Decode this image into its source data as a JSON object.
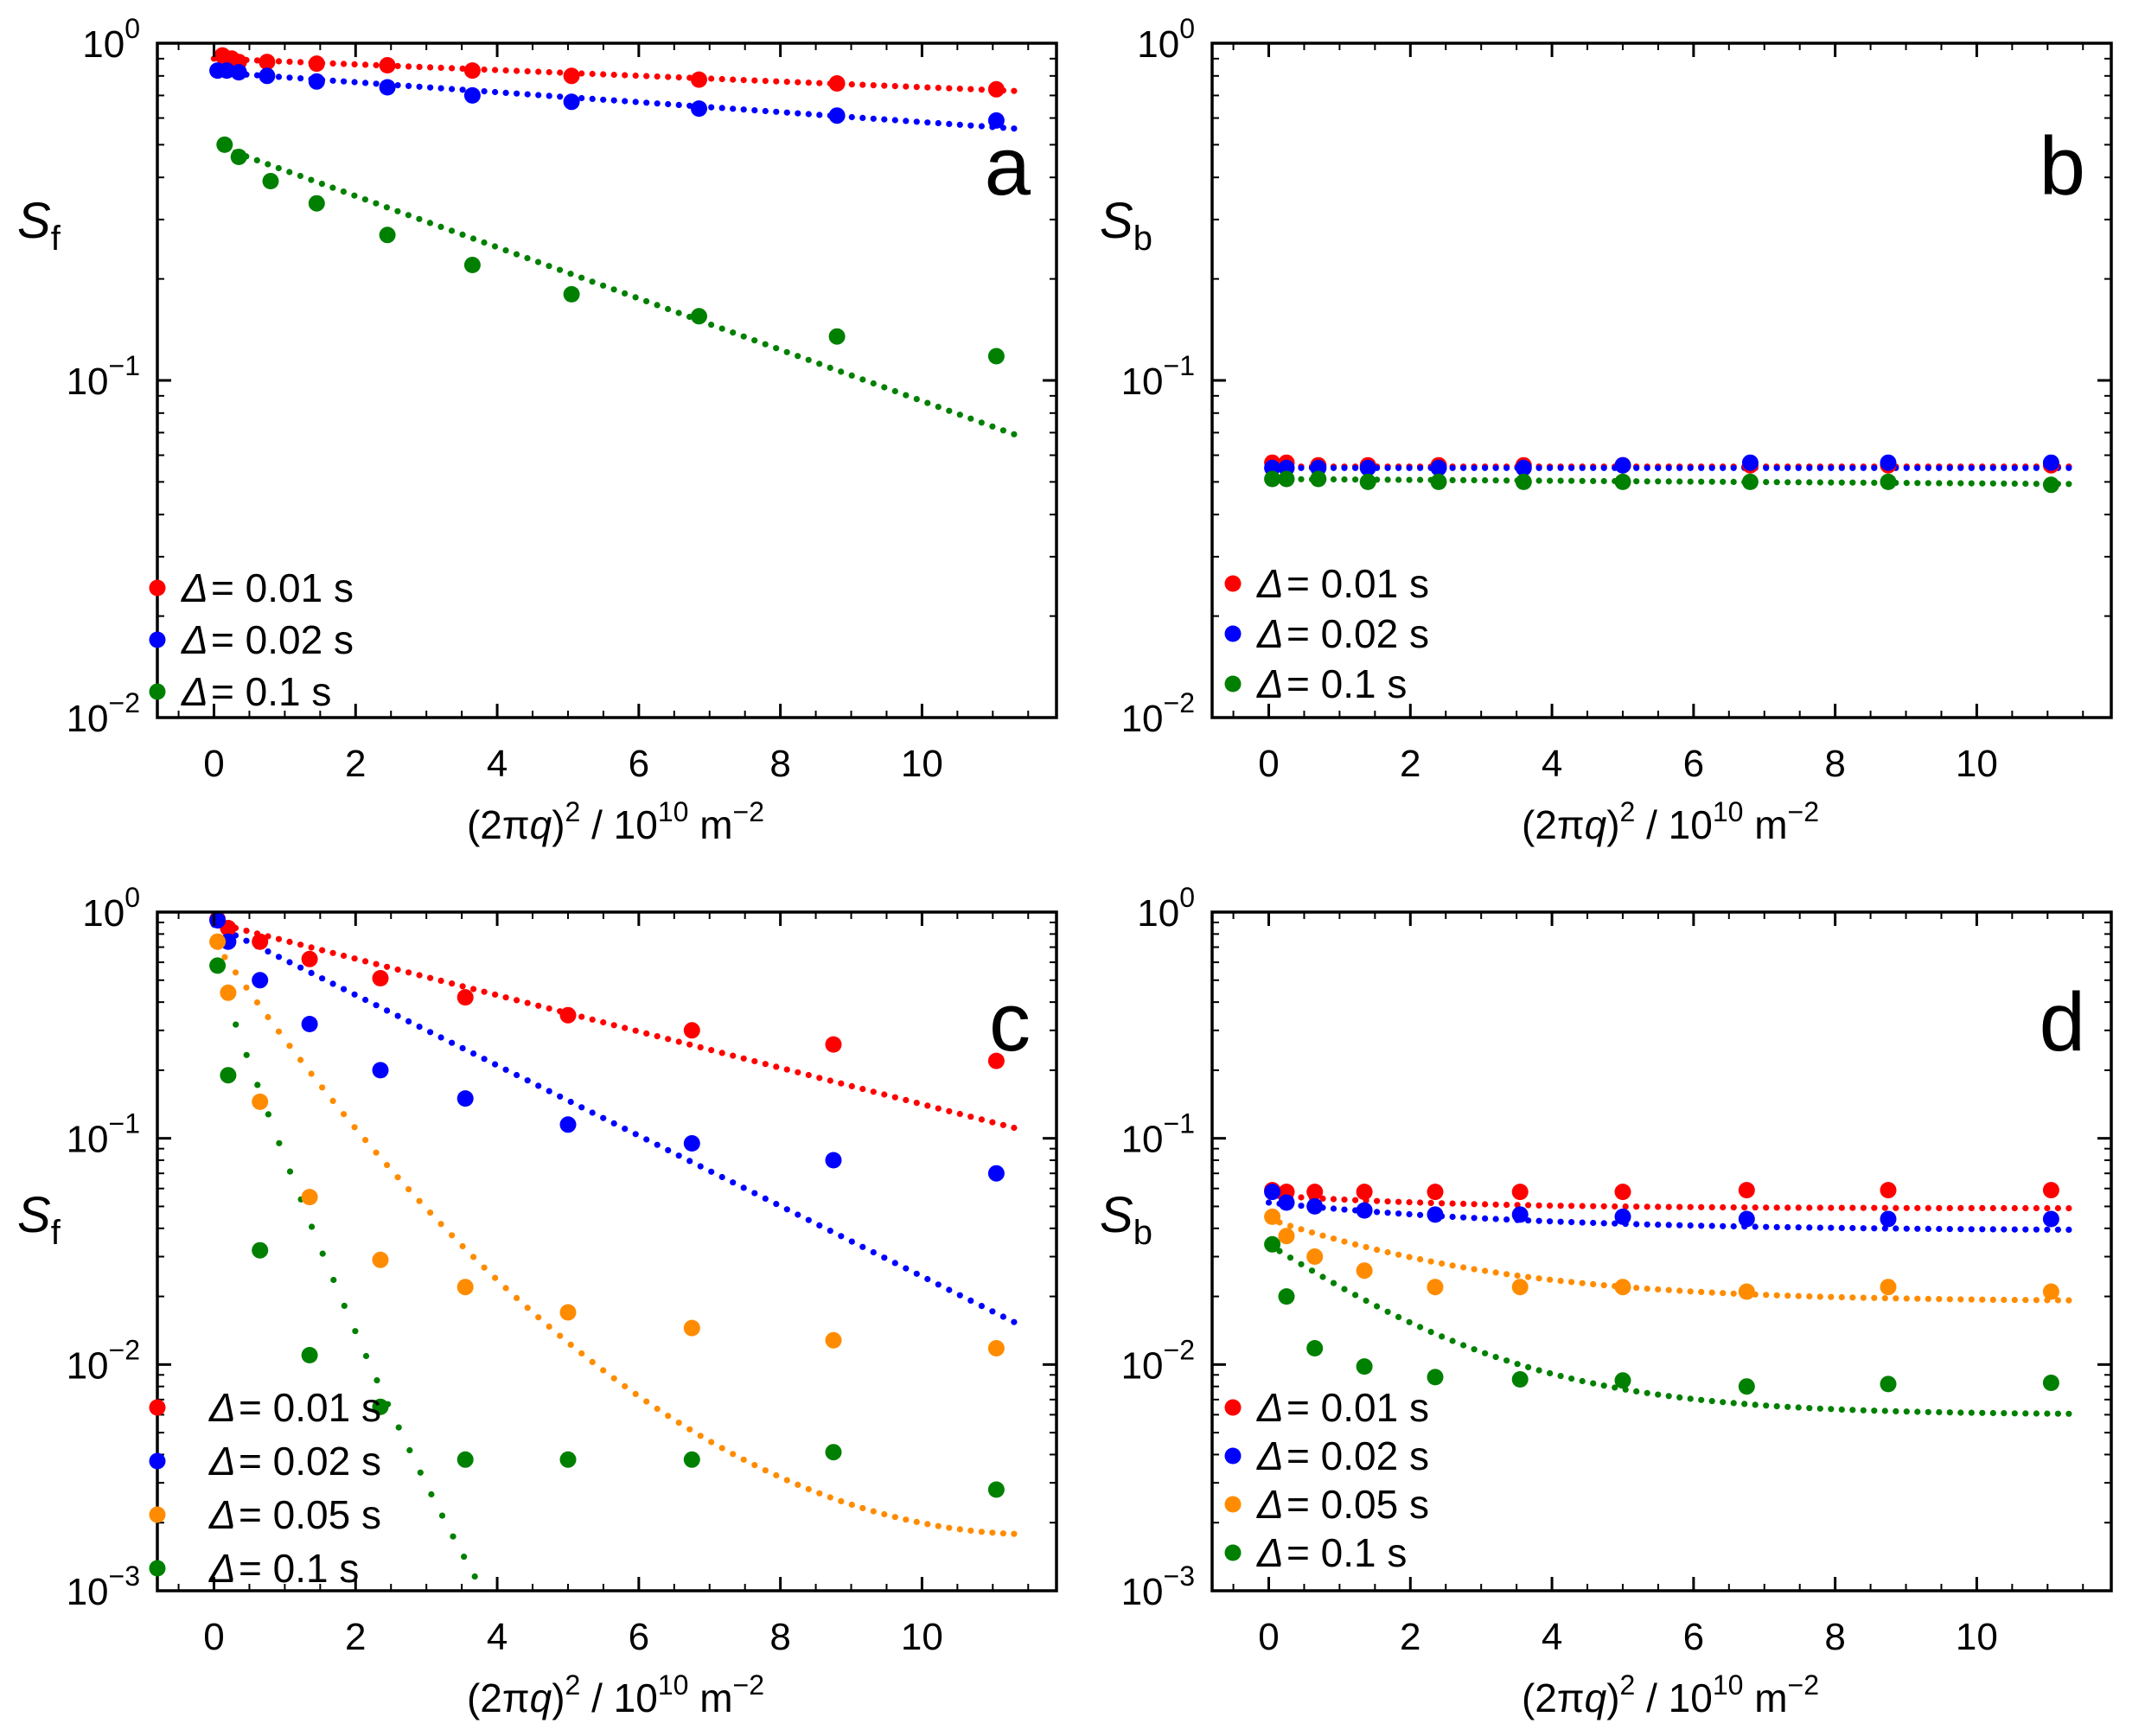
{
  "chart_data": [
    {
      "panel": "a",
      "type": "scatter",
      "panel_label": "a",
      "ylabel_main": "S",
      "ylabel_sub": "f",
      "xlabel_pre": "(2π",
      "xlabel_var": "q",
      "xlabel_close": ")",
      "xlabel_sup": "2",
      "xlabel_mid": " / 10",
      "xlabel_sup2": "10",
      "xlabel_unit": " m",
      "xlabel_sup3": "−2",
      "xlim": [
        -0.8,
        11.9
      ],
      "ylim": [
        0.01,
        1
      ],
      "yscale": "log",
      "xticks": [
        0,
        2,
        4,
        6,
        8,
        10
      ],
      "yticks": [
        {
          "value": 1,
          "base": "10",
          "exp": "0"
        },
        {
          "value": 0.1,
          "base": "10",
          "exp": "−1"
        },
        {
          "value": 0.01,
          "base": "10",
          "exp": "−2"
        }
      ],
      "legend": [
        {
          "sym": "Δ",
          "text": "= 0.01 s",
          "color": "#ff0000"
        },
        {
          "sym": "Δ",
          "text": "= 0.02 s",
          "color": "#0000ff"
        },
        {
          "sym": "Δ",
          "text": "= 0.1 s",
          "color": "#008000"
        }
      ],
      "series": [
        {
          "name": "Δ = 0.01 s",
          "color": "#ff0000",
          "x": [
            0.12,
            0.25,
            0.35,
            0.75,
            1.45,
            2.45,
            3.65,
            5.05,
            6.85,
            8.8,
            11.05
          ],
          "y": [
            0.92,
            0.9,
            0.88,
            0.88,
            0.87,
            0.86,
            0.83,
            0.8,
            0.78,
            0.76,
            0.73
          ],
          "fit": {
            "kind": "exp",
            "x0": 0,
            "x1": 11.3,
            "a": 0.9,
            "k": 0.0195
          }
        },
        {
          "name": "Δ = 0.02 s",
          "color": "#0000ff",
          "x": [
            0.05,
            0.18,
            0.35,
            0.75,
            1.45,
            2.45,
            3.65,
            5.05,
            6.85,
            8.8,
            11.05
          ],
          "y": [
            0.83,
            0.83,
            0.82,
            0.8,
            0.77,
            0.74,
            0.7,
            0.67,
            0.64,
            0.61,
            0.59
          ],
          "fit": {
            "kind": "exp",
            "x0": 0,
            "x1": 11.3,
            "a": 0.82,
            "k": 0.034
          }
        },
        {
          "name": "Δ = 0.1 s",
          "color": "#008000",
          "x": [
            0.15,
            0.35,
            0.8,
            1.45,
            2.45,
            3.65,
            5.05,
            6.85,
            8.8,
            11.05
          ],
          "y": [
            0.5,
            0.46,
            0.39,
            0.335,
            0.27,
            0.22,
            0.18,
            0.155,
            0.135,
            0.118
          ],
          "fit": {
            "kind": "exp",
            "x0": 0.15,
            "x1": 11.3,
            "a": 0.5,
            "k": 0.175
          }
        }
      ]
    },
    {
      "panel": "b",
      "type": "scatter",
      "panel_label": "b",
      "ylabel_main": "S",
      "ylabel_sub": "b",
      "xlabel_pre": "(2π",
      "xlabel_var": "q",
      "xlabel_close": ")",
      "xlabel_sup": "2",
      "xlabel_mid": " / 10",
      "xlabel_sup2": "10",
      "xlabel_unit": " m",
      "xlabel_sup3": "−2",
      "xlim": [
        -0.8,
        11.9
      ],
      "ylim": [
        0.01,
        1
      ],
      "yscale": "log",
      "xticks": [
        0,
        2,
        4,
        6,
        8,
        10
      ],
      "yticks": [
        {
          "value": 1,
          "base": "10",
          "exp": "0"
        },
        {
          "value": 0.1,
          "base": "10",
          "exp": "−1"
        },
        {
          "value": 0.01,
          "base": "10",
          "exp": "−2"
        }
      ],
      "legend": [
        {
          "sym": "Δ",
          "text": "= 0.01 s",
          "color": "#ff0000"
        },
        {
          "sym": "Δ",
          "text": "= 0.02 s",
          "color": "#0000ff"
        },
        {
          "sym": "Δ",
          "text": "= 0.1 s",
          "color": "#008000"
        }
      ],
      "series": [
        {
          "name": "Δ = 0.01 s",
          "color": "#ff0000",
          "x": [
            0.05,
            0.25,
            0.7,
            1.4,
            2.4,
            3.6,
            5.0,
            6.8,
            8.75,
            11.05
          ],
          "y": [
            0.057,
            0.057,
            0.056,
            0.056,
            0.056,
            0.056,
            0.056,
            0.056,
            0.056,
            0.056
          ],
          "fit": {
            "kind": "exp",
            "x0": 0,
            "x1": 11.3,
            "a": 0.0555,
            "k": 0.0
          }
        },
        {
          "name": "Δ = 0.02 s",
          "color": "#0000ff",
          "x": [
            0.05,
            0.25,
            0.7,
            1.4,
            2.4,
            3.6,
            5.0,
            6.8,
            8.75,
            11.05
          ],
          "y": [
            0.055,
            0.055,
            0.055,
            0.055,
            0.055,
            0.055,
            0.056,
            0.057,
            0.057,
            0.057
          ],
          "fit": {
            "kind": "exp",
            "x0": 0,
            "x1": 11.3,
            "a": 0.055,
            "k": 0.0
          }
        },
        {
          "name": "Δ = 0.1 s",
          "color": "#008000",
          "x": [
            0.05,
            0.25,
            0.7,
            1.4,
            2.4,
            3.6,
            5.0,
            6.8,
            8.75,
            11.05
          ],
          "y": [
            0.051,
            0.051,
            0.051,
            0.05,
            0.05,
            0.05,
            0.05,
            0.05,
            0.05,
            0.049
          ],
          "fit": {
            "kind": "exp",
            "x0": 0,
            "x1": 11.3,
            "a": 0.051,
            "k": 0.003
          }
        }
      ]
    },
    {
      "panel": "c",
      "type": "scatter",
      "panel_label": "c",
      "ylabel_main": "S",
      "ylabel_sub": "f",
      "xlabel_pre": "(2π",
      "xlabel_var": "q",
      "xlabel_close": ")",
      "xlabel_sup": "2",
      "xlabel_mid": " / 10",
      "xlabel_sup2": "10",
      "xlabel_unit": " m",
      "xlabel_sup3": "−2",
      "xlim": [
        -0.8,
        11.9
      ],
      "ylim": [
        0.001,
        1
      ],
      "yscale": "log",
      "xticks": [
        0,
        2,
        4,
        6,
        8,
        10
      ],
      "yticks": [
        {
          "value": 1,
          "base": "10",
          "exp": "0"
        },
        {
          "value": 0.1,
          "base": "10",
          "exp": "−1"
        },
        {
          "value": 0.01,
          "base": "10",
          "exp": "−2"
        },
        {
          "value": 0.001,
          "base": "10",
          "exp": "−3"
        }
      ],
      "legend": [
        {
          "sym": "Δ",
          "text": "= 0.01 s",
          "color": "#ff0000"
        },
        {
          "sym": "Δ",
          "text": "= 0.02 s",
          "color": "#0000ff"
        },
        {
          "sym": "Δ",
          "text": "= 0.05 s",
          "color": "#ff8c00"
        },
        {
          "sym": "Δ",
          "text": "= 0.1 s",
          "color": "#008000"
        }
      ],
      "series": [
        {
          "name": "Δ = 0.01 s",
          "color": "#ff0000",
          "x": [
            0.05,
            0.2,
            0.65,
            1.35,
            2.35,
            3.55,
            5.0,
            6.75,
            8.75,
            11.05
          ],
          "y": [
            0.93,
            0.85,
            0.74,
            0.62,
            0.51,
            0.42,
            0.35,
            0.3,
            0.26,
            0.22
          ],
          "fit": {
            "kind": "exp",
            "x0": 0,
            "x1": 11.3,
            "a": 0.9,
            "k": 0.185
          }
        },
        {
          "name": "Δ = 0.02 s",
          "color": "#0000ff",
          "x": [
            0.05,
            0.2,
            0.65,
            1.35,
            2.35,
            3.55,
            5.0,
            6.75,
            8.75,
            11.05
          ],
          "y": [
            0.92,
            0.74,
            0.5,
            0.32,
            0.2,
            0.15,
            0.115,
            0.095,
            0.08,
            0.07
          ],
          "fit": {
            "kind": "exp",
            "x0": 0,
            "x1": 11.3,
            "a": 0.88,
            "k": 0.358
          }
        },
        {
          "name": "Δ = 0.05 s",
          "color": "#ff8c00",
          "x": [
            0.05,
            0.2,
            0.65,
            1.35,
            2.35,
            3.55,
            5.0,
            6.75,
            8.75,
            11.05
          ],
          "y": [
            0.74,
            0.44,
            0.145,
            0.055,
            0.029,
            0.022,
            0.017,
            0.0145,
            0.0128,
            0.0118
          ],
          "fit": {
            "kind": "gauss",
            "x0": 0,
            "x1": 11.3,
            "a": 0.74,
            "k": 1.04,
            "x_peak": 11.6
          }
        },
        {
          "name": "Δ = 0.1 s",
          "color": "#008000",
          "x": [
            0.05,
            0.2,
            0.65,
            1.35,
            2.35,
            3.55,
            5.0,
            6.75,
            8.75,
            11.05
          ],
          "y": [
            0.58,
            0.19,
            0.032,
            0.011,
            0.0065,
            0.0038,
            0.0038,
            0.0038,
            0.0041,
            0.0028
          ],
          "fit": {
            "kind": "gauss",
            "x0": 0,
            "x1": 6.6,
            "a": 0.6,
            "k": 2.1,
            "x_peak": 9.6
          }
        }
      ]
    },
    {
      "panel": "d",
      "type": "scatter",
      "panel_label": "d",
      "ylabel_main": "S",
      "ylabel_sub": "b",
      "xlabel_pre": "(2π",
      "xlabel_var": "q",
      "xlabel_close": ")",
      "xlabel_sup": "2",
      "xlabel_mid": " / 10",
      "xlabel_sup2": "10",
      "xlabel_unit": " m",
      "xlabel_sup3": "−2",
      "xlim": [
        -0.8,
        11.9
      ],
      "ylim": [
        0.001,
        1
      ],
      "yscale": "log",
      "xticks": [
        0,
        2,
        4,
        6,
        8,
        10
      ],
      "yticks": [
        {
          "value": 1,
          "base": "10",
          "exp": "0"
        },
        {
          "value": 0.1,
          "base": "10",
          "exp": "−1"
        },
        {
          "value": 0.01,
          "base": "10",
          "exp": "−2"
        },
        {
          "value": 0.001,
          "base": "10",
          "exp": "−3"
        }
      ],
      "legend": [
        {
          "sym": "Δ",
          "text": "= 0.01 s",
          "color": "#ff0000"
        },
        {
          "sym": "Δ",
          "text": "= 0.02 s",
          "color": "#0000ff"
        },
        {
          "sym": "Δ",
          "text": "= 0.05 s",
          "color": "#ff8c00"
        },
        {
          "sym": "Δ",
          "text": "= 0.1 s",
          "color": "#008000"
        }
      ],
      "series": [
        {
          "name": "Δ = 0.01 s",
          "color": "#ff0000",
          "x": [
            0.05,
            0.25,
            0.65,
            1.35,
            2.35,
            3.55,
            5.0,
            6.75,
            8.75,
            11.05
          ],
          "y": [
            0.059,
            0.058,
            0.058,
            0.058,
            0.058,
            0.058,
            0.058,
            0.059,
            0.059,
            0.059
          ],
          "fit": {
            "kind": "satdecay",
            "x0": 0,
            "x1": 11.3,
            "inf": 0.049,
            "amp": 0.007,
            "k": 0.4
          }
        },
        {
          "name": "Δ = 0.02 s",
          "color": "#0000ff",
          "x": [
            0.05,
            0.25,
            0.65,
            1.35,
            2.35,
            3.55,
            5.0,
            6.75,
            8.75,
            11.05
          ],
          "y": [
            0.058,
            0.052,
            0.05,
            0.048,
            0.046,
            0.046,
            0.045,
            0.044,
            0.044,
            0.044
          ],
          "fit": {
            "kind": "satdecay",
            "x0": 0,
            "x1": 11.3,
            "inf": 0.039,
            "amp": 0.013,
            "k": 0.3
          }
        },
        {
          "name": "Δ = 0.05 s",
          "color": "#ff8c00",
          "x": [
            0.05,
            0.25,
            0.65,
            1.35,
            2.35,
            3.55,
            5.0,
            6.75,
            8.75,
            11.05
          ],
          "y": [
            0.045,
            0.037,
            0.03,
            0.026,
            0.022,
            0.022,
            0.022,
            0.021,
            0.022,
            0.021
          ],
          "fit": {
            "kind": "satdecay",
            "x0": 0,
            "x1": 11.3,
            "inf": 0.019,
            "amp": 0.025,
            "k": 0.42
          }
        },
        {
          "name": "Δ = 0.1 s",
          "color": "#008000",
          "x": [
            0.05,
            0.25,
            0.65,
            1.35,
            2.35,
            3.55,
            5.0,
            6.75,
            8.75,
            11.05
          ],
          "y": [
            0.034,
            0.02,
            0.0118,
            0.0098,
            0.0088,
            0.0086,
            0.0085,
            0.008,
            0.0082,
            0.0083
          ],
          "fit": {
            "kind": "satdecay",
            "x0": 0,
            "x1": 11.3,
            "inf": 0.006,
            "amp": 0.028,
            "k": 0.55
          }
        }
      ]
    }
  ]
}
